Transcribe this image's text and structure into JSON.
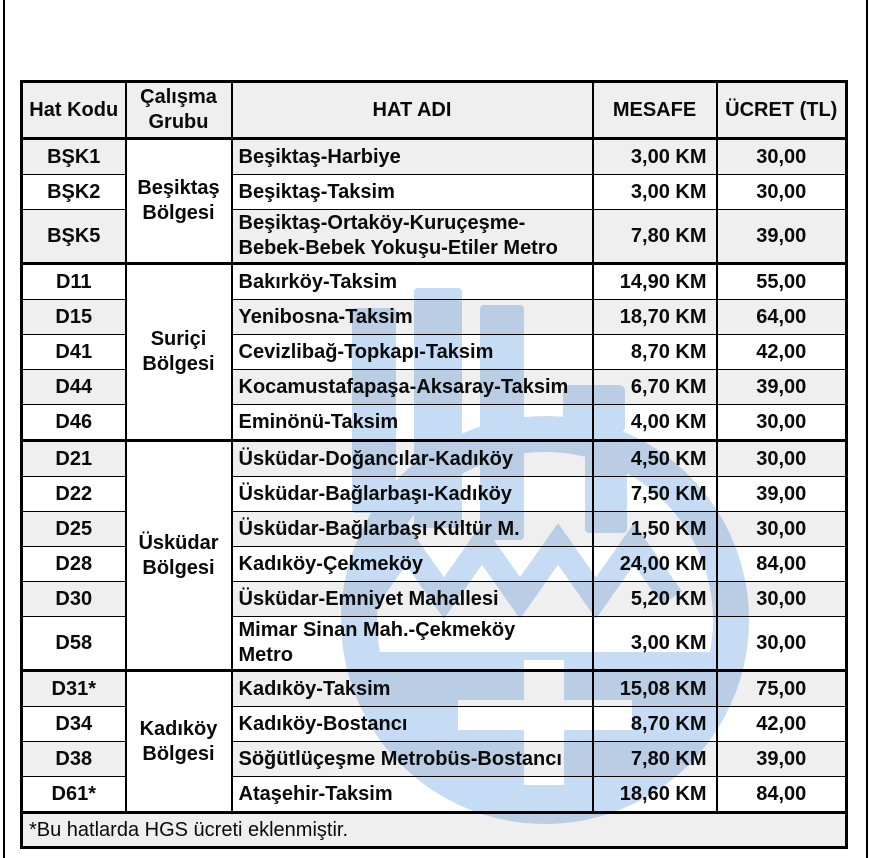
{
  "table": {
    "columns": [
      "Hat Kodu",
      "Çalışma Grubu",
      "HAT ADI",
      "MESAFE",
      "ÜCRET (TL)"
    ],
    "sections": [
      {
        "group": "Beşiktaş Bölgesi",
        "rows": [
          {
            "code": "BŞK1",
            "name": "Beşiktaş-Harbiye",
            "distance": "3,00 KM",
            "fare": "30,00"
          },
          {
            "code": "BŞK2",
            "name": "Beşiktaş-Taksim",
            "distance": "3,00 KM",
            "fare": "30,00"
          },
          {
            "code": "BŞK5",
            "name": "Beşiktaş-Ortaköy-Kuruçeşme-\nBebek-Bebek Yokuşu-Etiler Metro",
            "distance": "7,80 KM",
            "fare": "39,00"
          }
        ]
      },
      {
        "group": "Suriçi Bölgesi",
        "rows": [
          {
            "code": "D11",
            "name": "Bakırköy-Taksim",
            "distance": "14,90 KM",
            "fare": "55,00"
          },
          {
            "code": "D15",
            "name": "Yenibosna-Taksim",
            "distance": "18,70 KM",
            "fare": "64,00"
          },
          {
            "code": "D41",
            "name": "Cevizlibağ-Topkapı-Taksim",
            "distance": "8,70 KM",
            "fare": "42,00"
          },
          {
            "code": "D44",
            "name": "Kocamustafapaşa-Aksaray-Taksim",
            "distance": "6,70 KM",
            "fare": "39,00"
          },
          {
            "code": "D46",
            "name": "Eminönü-Taksim",
            "distance": "4,00 KM",
            "fare": "30,00"
          }
        ]
      },
      {
        "group": "Üsküdar Bölgesi",
        "rows": [
          {
            "code": "D21",
            "name": "Üsküdar-Doğancılar-Kadıköy",
            "distance": "4,50 KM",
            "fare": "30,00"
          },
          {
            "code": "D22",
            "name": "Üsküdar-Bağlarbaşı-Kadıköy",
            "distance": "7,50 KM",
            "fare": "39,00"
          },
          {
            "code": "D25",
            "name": "Üsküdar-Bağlarbaşı Kültür M.",
            "distance": "1,50 KM",
            "fare": "30,00"
          },
          {
            "code": "D28",
            "name": "Kadıköy-Çekmeköy",
            "distance": "24,00 KM",
            "fare": "84,00"
          },
          {
            "code": "D30",
            "name": "Üsküdar-Emniyet Mahallesi",
            "distance": "5,20 KM",
            "fare": "30,00"
          },
          {
            "code": "D58",
            "name": "Mimar Sinan Mah.-Çekmeköy\nMetro",
            "distance": "3,00 KM",
            "fare": "30,00"
          }
        ]
      },
      {
        "group": "Kadıköy Bölgesi",
        "rows": [
          {
            "code": "D31*",
            "name": "Kadıköy-Taksim",
            "distance": "15,08 KM",
            "fare": "75,00"
          },
          {
            "code": "D34",
            "name": "Kadıköy-Bostancı",
            "distance": "8,70 KM",
            "fare": "42,00"
          },
          {
            "code": "D38",
            "name": "Söğütlüçeşme Metrobüs-Bostancı",
            "distance": "7,80 KM",
            "fare": "39,00"
          },
          {
            "code": "D61*",
            "name": "Ataşehir-Taksim",
            "distance": "18,60 KM",
            "fare": "84,00"
          }
        ]
      }
    ],
    "footnote": "*Bu hatlarda HGS ücreti eklenmiştir."
  },
  "colors": {
    "watermark_blue": "#c6dcf4",
    "row_shade": "#efefef",
    "border": "#000000",
    "text": "#0a0a0a"
  },
  "icons": {
    "watermark": "light-blue-transit-emblem"
  }
}
